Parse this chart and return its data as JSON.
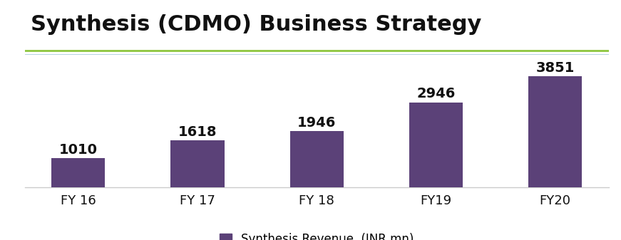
{
  "title": "Synthesis (CDMO) Business Strategy",
  "title_fontsize": 22,
  "title_fontweight": "bold",
  "title_color": "#111111",
  "categories": [
    "FY 16",
    "FY 17",
    "FY 18",
    "FY19",
    "FY20"
  ],
  "values": [
    1010,
    1618,
    1946,
    2946,
    3851
  ],
  "bar_color": "#5b4178",
  "bar_width": 0.45,
  "value_labels": [
    "1010",
    "1618",
    "1946",
    "2946",
    "3851"
  ],
  "label_fontsize": 14,
  "label_fontweight": "bold",
  "label_color": "#111111",
  "xtick_fontsize": 13,
  "legend_label": "Synthesis Revenue  (INR mn)",
  "legend_fontsize": 12,
  "ylim": [
    0,
    4600
  ],
  "background_color": "#ffffff",
  "title_line_color_green": "#8dc63f",
  "title_line_color_blue": "#b8d4e3",
  "spine_color": "#cccccc"
}
